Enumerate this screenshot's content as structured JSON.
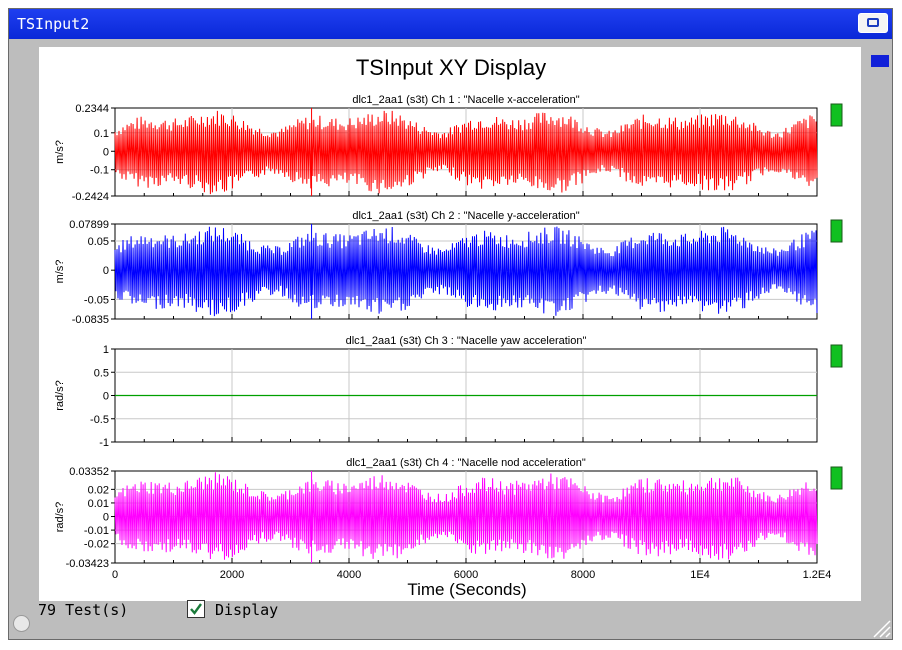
{
  "window": {
    "title": "TSInput2"
  },
  "plot": {
    "title": "TSInput XY Display",
    "xlabel": "Time (Seconds)",
    "x_ticks": [
      "0",
      "2000",
      "4000",
      "6000",
      "8000",
      "1E4",
      "1.2E4"
    ]
  },
  "footer": {
    "test_count": "79 Test(s)",
    "display_label": "Display",
    "display_checked": true
  },
  "chart_data": [
    {
      "type": "line",
      "title": "dlc1_2aa1 (s3t) Ch 1 : \"Nacelle x-acceleration\"",
      "ylabel": "m/s?",
      "ylim": [
        -0.2424,
        0.2344
      ],
      "y_ticks": [
        "0.2344",
        "0.1",
        "0",
        "-0.1",
        "-0.2424"
      ],
      "xlim": [
        0,
        12000
      ],
      "color": "#ff0000",
      "series": [
        {
          "x_range": [
            0,
            12000
          ],
          "min": -0.2424,
          "max": 0.2344
        }
      ]
    },
    {
      "type": "line",
      "title": "dlc1_2aa1 (s3t) Ch 2 : \"Nacelle y-acceleration\"",
      "ylabel": "m/s?",
      "ylim": [
        -0.0835,
        0.07899
      ],
      "y_ticks": [
        "0.07899",
        "0.05",
        "0",
        "-0.05",
        "-0.0835"
      ],
      "xlim": [
        0,
        12000
      ],
      "color": "#0000ff",
      "series": [
        {
          "x_range": [
            0,
            12000
          ],
          "min": -0.0835,
          "max": 0.07899
        }
      ]
    },
    {
      "type": "line",
      "title": "dlc1_2aa1 (s3t) Ch 3 : \"Nacelle yaw acceleration\"",
      "ylabel": "rad/s?",
      "ylim": [
        -1,
        1
      ],
      "y_ticks": [
        "1",
        "0.5",
        "0",
        "-0.5",
        "-1"
      ],
      "xlim": [
        0,
        12000
      ],
      "color": "#00a000",
      "series": [
        {
          "x_range": [
            0,
            12000
          ],
          "min": 0,
          "max": 0
        }
      ]
    },
    {
      "type": "line",
      "title": "dlc1_2aa1 (s3t) Ch 4 : \"Nacelle nod acceleration\"",
      "ylabel": "rad/s?",
      "ylim": [
        -0.03423,
        0.03352
      ],
      "y_ticks": [
        "0.03352",
        "0.02",
        "0.01",
        "0",
        "-0.01",
        "-0.02",
        "-0.03423"
      ],
      "xlim": [
        0,
        12000
      ],
      "color": "#ff00ff",
      "series": [
        {
          "x_range": [
            0,
            12000
          ],
          "min": -0.03423,
          "max": 0.03352
        }
      ]
    }
  ],
  "colors": {
    "titlebar": "#0a28d8",
    "panel": "#bdbdbd",
    "indicator": "#10c020"
  }
}
